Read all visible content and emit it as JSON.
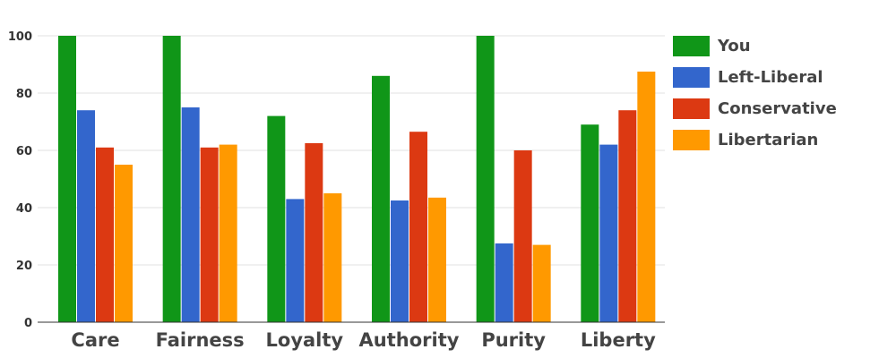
{
  "chart_data": {
    "type": "bar",
    "title": "",
    "xlabel": "",
    "ylabel": "",
    "ylim": [
      0,
      100
    ],
    "y_ticks": [
      "0",
      "20",
      "40",
      "60",
      "80",
      "100"
    ],
    "grid": true,
    "legend_position": "right",
    "categories": [
      "Care",
      "Fairness",
      "Loyalty",
      "Authority",
      "Purity",
      "Liberty"
    ],
    "series": [
      {
        "name": "You",
        "color": "#109618",
        "values": [
          100,
          100,
          72,
          86,
          100,
          69
        ]
      },
      {
        "name": "Left-Liberal",
        "color": "#3366cc",
        "values": [
          74,
          75,
          43,
          42.5,
          27.5,
          62
        ]
      },
      {
        "name": "Conservative",
        "color": "#dc3912",
        "values": [
          61,
          61,
          62.5,
          66.5,
          60,
          74
        ]
      },
      {
        "name": "Libertarian",
        "color": "#ff9900",
        "values": [
          55,
          62,
          45,
          43.5,
          27,
          87.5
        ]
      }
    ]
  }
}
